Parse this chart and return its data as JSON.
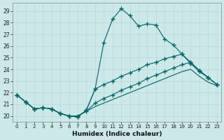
{
  "xlabel": "Humidex (Indice chaleur)",
  "bg_color": "#cce8e8",
  "grid_color": "#b8d8d8",
  "line_color": "#006666",
  "xlim": [
    -0.5,
    23.5
  ],
  "ylim": [
    19.5,
    29.7
  ],
  "xticks": [
    0,
    1,
    2,
    3,
    4,
    5,
    6,
    7,
    8,
    9,
    10,
    11,
    12,
    13,
    14,
    15,
    16,
    17,
    18,
    19,
    20,
    21,
    22,
    23
  ],
  "yticks": [
    20,
    21,
    22,
    23,
    24,
    25,
    26,
    27,
    28,
    29
  ],
  "line1_x": [
    0,
    1,
    2,
    3,
    4,
    5,
    6,
    7,
    8,
    9,
    10,
    11,
    12,
    13,
    14,
    15,
    16,
    17,
    18,
    19,
    20,
    21,
    22,
    23
  ],
  "line1_y": [
    21.8,
    21.2,
    20.6,
    20.7,
    20.6,
    20.2,
    20.0,
    19.9,
    20.5,
    22.3,
    26.3,
    28.3,
    29.2,
    28.6,
    27.7,
    27.9,
    27.8,
    26.6,
    26.1,
    25.3,
    24.6,
    23.9,
    23.3,
    22.7
  ],
  "line2_x": [
    0,
    1,
    2,
    3,
    4,
    5,
    6,
    7,
    8,
    9,
    10,
    11,
    12,
    13,
    14,
    15,
    16,
    17,
    18,
    19,
    20,
    21,
    22,
    23
  ],
  "line2_y": [
    21.8,
    21.2,
    20.6,
    20.7,
    20.6,
    20.2,
    20.0,
    19.9,
    20.5,
    22.3,
    22.7,
    23.0,
    23.4,
    23.7,
    24.0,
    24.4,
    24.6,
    24.9,
    25.1,
    25.3,
    24.5,
    23.8,
    23.3,
    22.7
  ],
  "line3_x": [
    0,
    1,
    2,
    3,
    4,
    5,
    6,
    7,
    8,
    9,
    10,
    11,
    12,
    13,
    14,
    15,
    16,
    17,
    18,
    19,
    20,
    21,
    22,
    23
  ],
  "line3_y": [
    21.8,
    21.2,
    20.6,
    20.7,
    20.6,
    20.2,
    20.0,
    20.0,
    20.4,
    21.1,
    21.5,
    21.8,
    22.2,
    22.5,
    22.8,
    23.2,
    23.5,
    23.8,
    24.1,
    24.4,
    24.6,
    23.9,
    23.3,
    22.7
  ],
  "line4_x": [
    0,
    1,
    2,
    3,
    4,
    5,
    6,
    7,
    8,
    9,
    10,
    11,
    12,
    13,
    14,
    15,
    16,
    17,
    18,
    19,
    20,
    21,
    22,
    23
  ],
  "line4_y": [
    21.8,
    21.2,
    20.6,
    20.7,
    20.6,
    20.2,
    20.0,
    20.0,
    20.4,
    20.8,
    21.1,
    21.4,
    21.7,
    22.0,
    22.3,
    22.6,
    22.9,
    23.2,
    23.5,
    23.8,
    24.0,
    23.4,
    22.9,
    22.6
  ]
}
